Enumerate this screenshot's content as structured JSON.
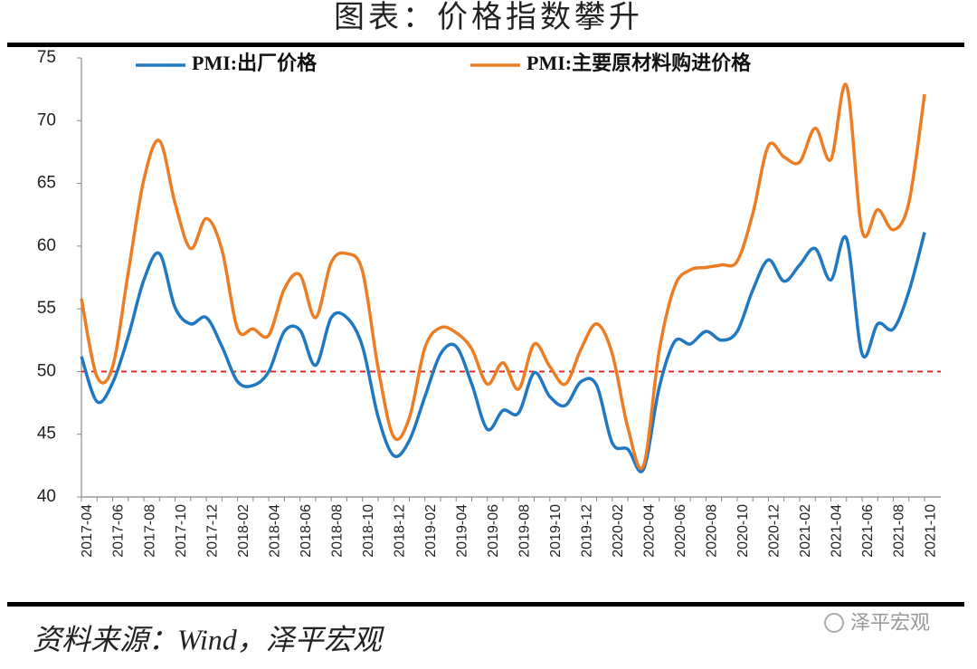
{
  "chart_data": {
    "type": "line",
    "title": "图表：价格指数攀升",
    "source": "资料来源：Wind，泽平宏观",
    "watermark": "泽平宏观",
    "categories": [
      "2017-04",
      null,
      "2017-06",
      null,
      "2017-08",
      null,
      "2017-10",
      null,
      "2017-12",
      null,
      "2018-02",
      null,
      "2018-04",
      null,
      "2018-06",
      null,
      "2018-08",
      null,
      "2018-10",
      null,
      "2018-12",
      null,
      "2019-02",
      null,
      "2019-04",
      null,
      "2019-06",
      null,
      "2019-08",
      null,
      "2019-10",
      null,
      "2019-12",
      null,
      "2020-02",
      null,
      "2020-04",
      null,
      "2020-06",
      null,
      "2020-08",
      null,
      "2020-10",
      null,
      "2020-12",
      null,
      "2021-02",
      null,
      "2021-04",
      null,
      "2021-06",
      null,
      "2021-08",
      null,
      "2021-10"
    ],
    "series": [
      {
        "name": "PMI:出厂价格",
        "color": "#1f78c1",
        "values": [
          51.2,
          47.6,
          49.1,
          52.8,
          57.3,
          59.4,
          55.1,
          53.8,
          54.3,
          52.0,
          49.2,
          48.9,
          50.0,
          53.2,
          53.3,
          50.5,
          54.3,
          54.3,
          52.0,
          46.4,
          43.3,
          44.5,
          48.0,
          51.4,
          52.0,
          49.0,
          45.4,
          46.9,
          46.7,
          49.9,
          48.0,
          47.3,
          49.2,
          48.9,
          44.3,
          43.8,
          42.2,
          48.7,
          52.4,
          52.2,
          53.2,
          52.5,
          53.2,
          56.5,
          58.9,
          57.2,
          58.5,
          59.8,
          57.3,
          60.6,
          51.4,
          53.8,
          53.4,
          56.4,
          61.1
        ]
      },
      {
        "name": "PMI:主要原材料购进价格",
        "color": "#ed7d24",
        "values": [
          55.8,
          49.6,
          50.4,
          57.9,
          65.3,
          68.4,
          63.4,
          59.8,
          62.2,
          59.7,
          53.4,
          53.4,
          52.9,
          56.6,
          57.7,
          54.3,
          58.7,
          59.4,
          58.0,
          50.3,
          44.8,
          46.3,
          51.9,
          53.5,
          53.1,
          51.8,
          49.0,
          50.7,
          48.6,
          52.2,
          50.4,
          49.0,
          51.8,
          53.8,
          51.4,
          45.5,
          42.5,
          51.6,
          56.8,
          58.1,
          58.3,
          58.5,
          58.8,
          62.6,
          68.0,
          67.1,
          66.7,
          69.4,
          66.9,
          72.8,
          61.2,
          62.9,
          61.3,
          63.5,
          72.1
        ]
      }
    ],
    "reference_line": {
      "value": 50,
      "color": "#e02020",
      "dashed": true
    },
    "ylim": [
      40,
      75
    ],
    "yticks": [
      40,
      45,
      50,
      55,
      60,
      65,
      70,
      75
    ],
    "legend": "top"
  }
}
